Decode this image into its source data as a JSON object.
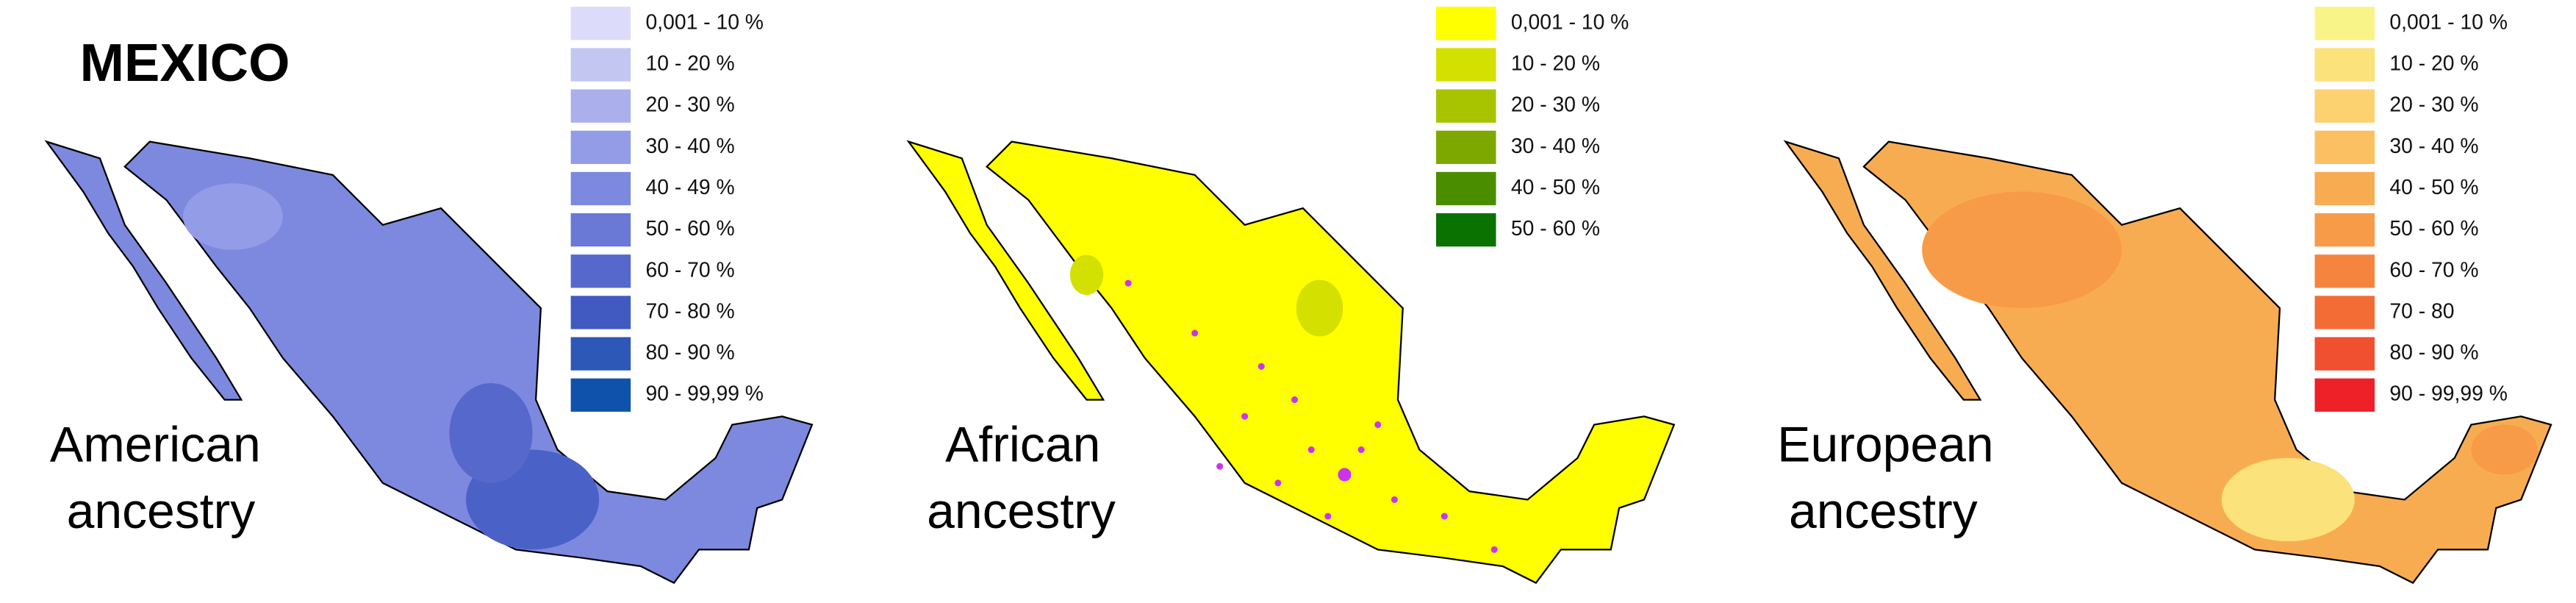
{
  "title": "MEXICO",
  "panels": [
    {
      "label_lines": [
        "American",
        "ancestry"
      ],
      "legend": [
        {
          "label": "0,001 - 10 %",
          "color": "#dcdcfa"
        },
        {
          "label": "10 - 20 %",
          "color": "#c4c6f2"
        },
        {
          "label": "20 - 30 %",
          "color": "#abb0ec"
        },
        {
          "label": "30 - 40 %",
          "color": "#939ce6"
        },
        {
          "label": "40 - 49 %",
          "color": "#7d89de"
        },
        {
          "label": "50 - 60 %",
          "color": "#6a78d6"
        },
        {
          "label": "60 - 70 %",
          "color": "#5668cc"
        },
        {
          "label": "70 - 80 %",
          "color": "#405ac2"
        },
        {
          "label": "80 - 90 %",
          "color": "#2e58b8"
        },
        {
          "label": "90 - 99,99 %",
          "color": "#0f52ab"
        }
      ]
    },
    {
      "label_lines": [
        "African",
        "ancestry"
      ],
      "legend": [
        {
          "label": "0,001 - 10 %",
          "color": "#ffff00"
        },
        {
          "label": "10 - 20 %",
          "color": "#d4e000"
        },
        {
          "label": "20 - 30 %",
          "color": "#a8c400"
        },
        {
          "label": "30 - 40 %",
          "color": "#7ca800"
        },
        {
          "label": "40 - 50 %",
          "color": "#4a8e00"
        },
        {
          "label": "50 - 60 %",
          "color": "#0a7300"
        }
      ]
    },
    {
      "label_lines": [
        "European",
        "ancestry"
      ],
      "legend": [
        {
          "label": "0,001 - 10 %",
          "color": "#f8f488"
        },
        {
          "label": "10 - 20 %",
          "color": "#fbe27a"
        },
        {
          "label": "20 - 30 %",
          "color": "#fcd270"
        },
        {
          "label": "30 - 40 %",
          "color": "#fbc062"
        },
        {
          "label": "40 - 50 %",
          "color": "#f8ac52"
        },
        {
          "label": "50 - 60 %",
          "color": "#f79b48"
        },
        {
          "label": "60 - 70 %",
          "color": "#f5853e"
        },
        {
          "label": "70 - 80",
          "color": "#f36c36"
        },
        {
          "label": "80 - 90 %",
          "color": "#f15030"
        },
        {
          "label": "90 - 99,99 %",
          "color": "#ee2028"
        }
      ]
    }
  ]
}
